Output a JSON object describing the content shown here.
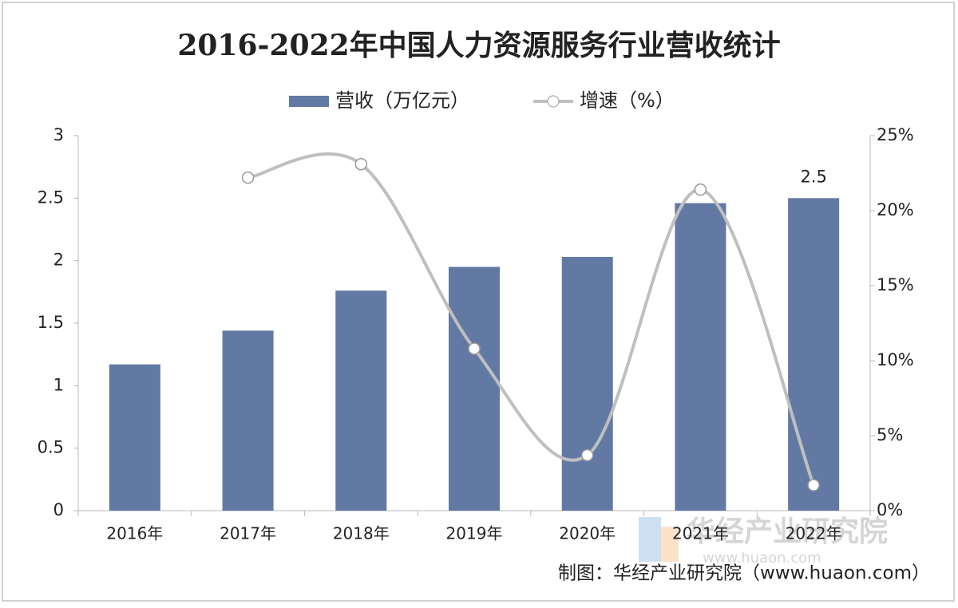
{
  "chart_data": {
    "type": "bar-line",
    "title": "2016-2022年中国人力资源服务行业营收统计",
    "categories": [
      "2016年",
      "2017年",
      "2018年",
      "2019年",
      "2020年",
      "2021年",
      "2022年"
    ],
    "series": [
      {
        "name": "营收（万亿元）",
        "type": "bar",
        "color": "#6279a3",
        "values": [
          1.17,
          1.44,
          1.76,
          1.95,
          2.03,
          2.46,
          2.5
        ],
        "value_labels": [
          null,
          null,
          null,
          null,
          null,
          null,
          "2.5"
        ]
      },
      {
        "name": "增速（%）",
        "type": "line",
        "axis": "y2",
        "color": "#bfbfbf",
        "values": [
          null,
          22.2,
          23.1,
          10.8,
          3.7,
          21.4,
          1.7
        ]
      }
    ],
    "ylim": [
      0,
      3
    ],
    "yticks": [
      0,
      0.5,
      1,
      1.5,
      2,
      2.5,
      3
    ],
    "y2lim": [
      0,
      25
    ],
    "y2ticks": [
      {
        "value": 0,
        "label": "0%"
      },
      {
        "value": 5,
        "label": "5%"
      },
      {
        "value": 10,
        "label": "10%"
      },
      {
        "value": 15,
        "label": "15%"
      },
      {
        "value": 20,
        "label": "20%"
      },
      {
        "value": 25,
        "label": "25%"
      }
    ],
    "legend": "top",
    "source": "制图：华经产业研究院（www.huaon.com）",
    "watermark": "华经产业研究院",
    "watermark_url": "www.huaon.com"
  }
}
